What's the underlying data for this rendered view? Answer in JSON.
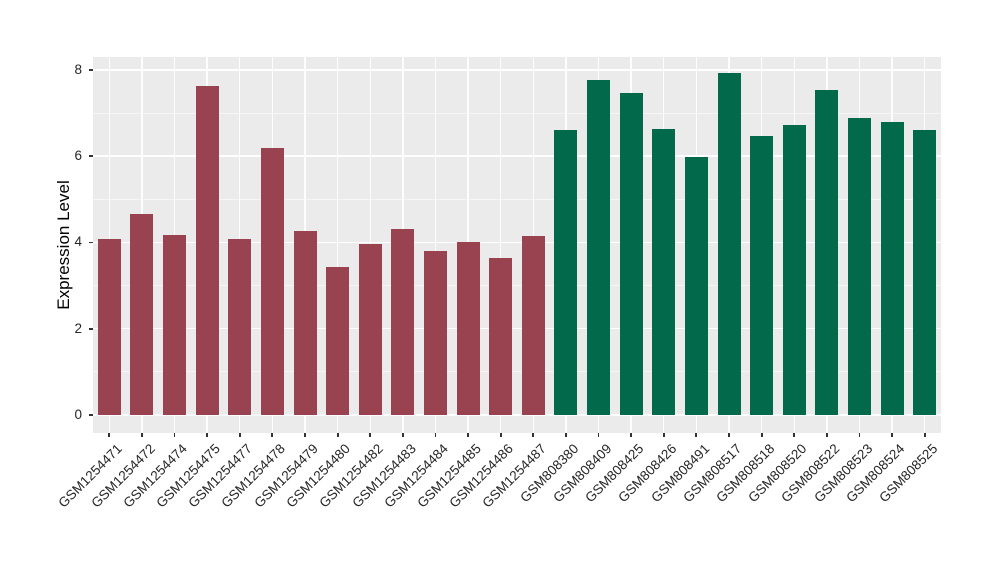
{
  "chart_data": {
    "type": "bar",
    "title": "",
    "xlabel": "",
    "ylabel": "Expression Level",
    "ylim": [
      -0.42,
      8.3
    ],
    "yticks": [
      0,
      2,
      4,
      6,
      8
    ],
    "yticks_minor": [
      1,
      3,
      5,
      7
    ],
    "grid": "white major+minor horizontal and white major vertical gridlines on gray panel",
    "panel_background": "#EBEBEB",
    "legend_position": "none",
    "categories": [
      "GSM1254471",
      "GSM1254472",
      "GSM1254474",
      "GSM1254475",
      "GSM1254477",
      "GSM1254478",
      "GSM1254479",
      "GSM1254480",
      "GSM1254482",
      "GSM1254483",
      "GSM1254484",
      "GSM1254485",
      "GSM1254486",
      "GSM1254487",
      "GSM808380",
      "GSM808409",
      "GSM808425",
      "GSM808426",
      "GSM808491",
      "GSM808517",
      "GSM808518",
      "GSM808520",
      "GSM808522",
      "GSM808523",
      "GSM808524",
      "GSM808525"
    ],
    "values": [
      4.07,
      4.65,
      4.17,
      7.63,
      4.07,
      6.19,
      4.26,
      3.43,
      3.97,
      4.3,
      3.8,
      4.01,
      3.63,
      4.16,
      6.6,
      7.77,
      7.47,
      6.64,
      5.99,
      7.93,
      6.47,
      6.72,
      7.53,
      6.88,
      6.8,
      6.61
    ],
    "bar_groups": [
      "group1",
      "group1",
      "group1",
      "group1",
      "group1",
      "group1",
      "group1",
      "group1",
      "group1",
      "group1",
      "group1",
      "group1",
      "group1",
      "group1",
      "group2",
      "group2",
      "group2",
      "group2",
      "group2",
      "group2",
      "group2",
      "group2",
      "group2",
      "group2",
      "group2",
      "group2"
    ],
    "group_colors": {
      "group1": "#994350",
      "group2": "#026A4B"
    }
  }
}
